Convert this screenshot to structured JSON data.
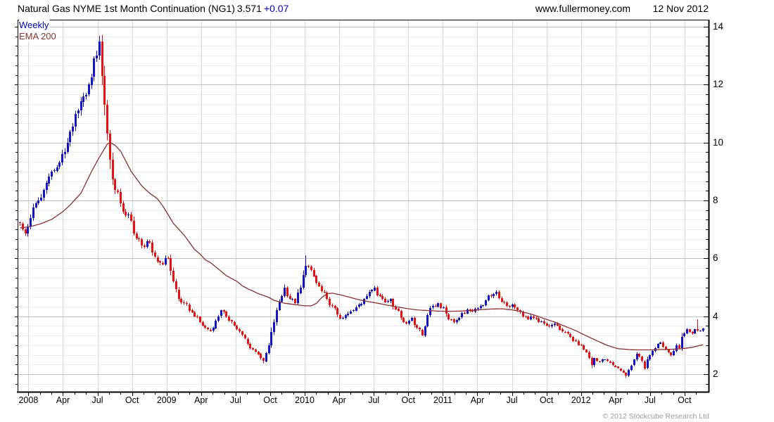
{
  "header": {
    "title": "Natural Gas NYME 1st Month Continuation (NG1)",
    "price": "3.571",
    "change": "+0.07",
    "website": "www.fullermoney.com",
    "date": "12 Nov 2012"
  },
  "legend": {
    "series": "Weekly",
    "overlay": "EMA 200"
  },
  "footer": {
    "copyright": "© 2012 Stockcube Research Ltd"
  },
  "colors": {
    "up_candle": "#1212cc",
    "down_candle": "#e81010",
    "ema_line": "#8b2f2f",
    "weekly_label": "#0000bb",
    "change_text": "#0000cc",
    "grid_major_h": "#c2c2c2",
    "grid_minor_h": "#ececec",
    "grid_vertical": "#d8d8d8",
    "axis": "#000000",
    "copyright_text": "#9a9a9a"
  },
  "chart_data": {
    "type": "candlestick",
    "instrument": "Natural Gas NYME 1st Month Continuation (NG1)",
    "interval": "Weekly",
    "overlay_name": "EMA 200",
    "last": {
      "close": 3.571,
      "change": "+0.07",
      "date": "12 Nov 2012"
    },
    "weeks_total": 259,
    "x_axis": {
      "months_total": 59,
      "start": "Dec 2007",
      "end": "Nov 2012",
      "labels": [
        [
          0,
          "2008"
        ],
        [
          3,
          "Apr"
        ],
        [
          6,
          "Jul"
        ],
        [
          9,
          "Oct"
        ],
        [
          12,
          "2009"
        ],
        [
          15,
          "Apr"
        ],
        [
          18,
          "Jul"
        ],
        [
          21,
          "Oct"
        ],
        [
          24,
          "2010"
        ],
        [
          27,
          "Apr"
        ],
        [
          30,
          "Jul"
        ],
        [
          33,
          "Oct"
        ],
        [
          36,
          "2011"
        ],
        [
          39,
          "Apr"
        ],
        [
          42,
          "Jul"
        ],
        [
          45,
          "Oct"
        ],
        [
          48,
          "2012"
        ],
        [
          51,
          "Apr"
        ],
        [
          54,
          "Jul"
        ],
        [
          57,
          "Oct"
        ]
      ]
    },
    "y_axis": {
      "ticks": [
        2,
        4,
        6,
        8,
        10,
        12,
        14
      ],
      "minor_step": 0.3333,
      "range_shown": [
        1.39,
        14.24
      ],
      "grid": true
    },
    "price_anchors": [
      [
        0,
        7.2
      ],
      [
        1,
        7.0
      ],
      [
        2,
        6.85
      ],
      [
        3,
        7.1
      ],
      [
        4,
        7.4
      ],
      [
        6,
        7.9
      ],
      [
        8,
        8.1
      ],
      [
        10,
        8.6
      ],
      [
        12,
        9.0
      ],
      [
        14,
        9.15
      ],
      [
        16,
        9.6
      ],
      [
        18,
        10.0
      ],
      [
        20,
        10.55
      ],
      [
        22,
        11.1
      ],
      [
        24,
        11.6
      ],
      [
        26,
        12.0
      ],
      [
        28,
        12.9
      ],
      [
        30,
        13.5
      ],
      [
        31,
        12.3
      ],
      [
        32,
        11.3
      ],
      [
        34,
        9.4
      ],
      [
        36,
        8.35
      ],
      [
        38,
        7.9
      ],
      [
        40,
        7.5
      ],
      [
        42,
        7.3
      ],
      [
        44,
        6.7
      ],
      [
        46,
        6.45
      ],
      [
        48,
        6.6
      ],
      [
        50,
        6.2
      ],
      [
        52,
        5.9
      ],
      [
        54,
        5.8
      ],
      [
        56,
        6.0
      ],
      [
        58,
        5.2
      ],
      [
        60,
        4.6
      ],
      [
        62,
        4.45
      ],
      [
        64,
        4.2
      ],
      [
        66,
        4.0
      ],
      [
        68,
        3.8
      ],
      [
        70,
        3.6
      ],
      [
        72,
        3.5
      ],
      [
        74,
        3.85
      ],
      [
        76,
        4.2
      ],
      [
        78,
        4.0
      ],
      [
        80,
        3.8
      ],
      [
        82,
        3.55
      ],
      [
        84,
        3.35
      ],
      [
        86,
        3.05
      ],
      [
        88,
        2.85
      ],
      [
        90,
        2.7
      ],
      [
        92,
        2.45
      ],
      [
        94,
        3.0
      ],
      [
        96,
        3.8
      ],
      [
        98,
        4.5
      ],
      [
        100,
        5.0
      ],
      [
        102,
        4.6
      ],
      [
        104,
        4.45
      ],
      [
        106,
        5.0
      ],
      [
        108,
        5.75
      ],
      [
        110,
        5.6
      ],
      [
        112,
        5.15
      ],
      [
        114,
        4.85
      ],
      [
        116,
        4.6
      ],
      [
        118,
        4.35
      ],
      [
        120,
        4.05
      ],
      [
        122,
        3.95
      ],
      [
        124,
        4.1
      ],
      [
        126,
        4.2
      ],
      [
        128,
        4.4
      ],
      [
        130,
        4.6
      ],
      [
        132,
        4.85
      ],
      [
        134,
        5.0
      ],
      [
        136,
        4.7
      ],
      [
        138,
        4.5
      ],
      [
        140,
        4.6
      ],
      [
        142,
        4.25
      ],
      [
        144,
        3.95
      ],
      [
        146,
        3.75
      ],
      [
        148,
        3.95
      ],
      [
        150,
        3.6
      ],
      [
        152,
        3.35
      ],
      [
        154,
        4.05
      ],
      [
        156,
        4.35
      ],
      [
        158,
        4.45
      ],
      [
        160,
        4.3
      ],
      [
        162,
        3.9
      ],
      [
        164,
        3.8
      ],
      [
        166,
        3.95
      ],
      [
        168,
        4.1
      ],
      [
        170,
        4.2
      ],
      [
        172,
        4.25
      ],
      [
        174,
        4.35
      ],
      [
        176,
        4.55
      ],
      [
        178,
        4.7
      ],
      [
        180,
        4.85
      ],
      [
        182,
        4.5
      ],
      [
        184,
        4.35
      ],
      [
        186,
        4.4
      ],
      [
        188,
        4.2
      ],
      [
        190,
        4.0
      ],
      [
        192,
        3.9
      ],
      [
        194,
        3.95
      ],
      [
        196,
        3.8
      ],
      [
        198,
        3.75
      ],
      [
        200,
        3.65
      ],
      [
        202,
        3.75
      ],
      [
        204,
        3.55
      ],
      [
        206,
        3.45
      ],
      [
        208,
        3.3
      ],
      [
        210,
        3.15
      ],
      [
        212,
        3.0
      ],
      [
        214,
        2.75
      ],
      [
        215,
        2.55
      ],
      [
        216,
        2.3
      ],
      [
        217,
        2.55
      ],
      [
        218,
        2.45
      ],
      [
        220,
        2.5
      ],
      [
        222,
        2.45
      ],
      [
        224,
        2.3
      ],
      [
        226,
        2.2
      ],
      [
        228,
        2.05
      ],
      [
        229,
        1.95
      ],
      [
        230,
        2.15
      ],
      [
        231,
        2.3
      ],
      [
        232,
        2.5
      ],
      [
        233,
        2.7
      ],
      [
        234,
        2.6
      ],
      [
        235,
        2.45
      ],
      [
        236,
        2.2
      ],
      [
        237,
        2.5
      ],
      [
        238,
        2.65
      ],
      [
        239,
        2.8
      ],
      [
        240,
        2.9
      ],
      [
        241,
        3.05
      ],
      [
        242,
        3.1
      ],
      [
        243,
        2.95
      ],
      [
        244,
        2.85
      ],
      [
        245,
        2.75
      ],
      [
        246,
        2.65
      ],
      [
        247,
        2.8
      ],
      [
        248,
        3.0
      ],
      [
        249,
        2.9
      ],
      [
        250,
        3.3
      ],
      [
        251,
        3.4
      ],
      [
        252,
        3.55
      ],
      [
        253,
        3.45
      ],
      [
        254,
        3.4
      ],
      [
        255,
        3.55
      ],
      [
        256,
        3.5
      ],
      [
        257,
        3.5
      ],
      [
        258,
        3.571
      ]
    ],
    "notable_wicks": [
      {
        "week": 30,
        "side": "high",
        "value": 13.69
      },
      {
        "week": 92,
        "side": "low",
        "value": 2.38
      },
      {
        "week": 108,
        "side": "high",
        "value": 6.1
      },
      {
        "week": 229,
        "side": "low",
        "value": 1.88
      },
      {
        "week": 256,
        "side": "high",
        "value": 3.9
      }
    ],
    "ema_anchors": [
      [
        0,
        7.05
      ],
      [
        4,
        7.1
      ],
      [
        8,
        7.2
      ],
      [
        12,
        7.35
      ],
      [
        16,
        7.6
      ],
      [
        19,
        7.85
      ],
      [
        23,
        8.25
      ],
      [
        27,
        9.0
      ],
      [
        30,
        9.5
      ],
      [
        33,
        9.95
      ],
      [
        34,
        10.0
      ],
      [
        36,
        9.9
      ],
      [
        38,
        9.7
      ],
      [
        40,
        9.35
      ],
      [
        42,
        9.0
      ],
      [
        44,
        8.75
      ],
      [
        46,
        8.5
      ],
      [
        49,
        8.25
      ],
      [
        52,
        8.05
      ],
      [
        54,
        7.8
      ],
      [
        56,
        7.5
      ],
      [
        58,
        7.2
      ],
      [
        60,
        7.0
      ],
      [
        62,
        6.8
      ],
      [
        64,
        6.55
      ],
      [
        66,
        6.3
      ],
      [
        68,
        6.15
      ],
      [
        70,
        5.95
      ],
      [
        72,
        5.85
      ],
      [
        74,
        5.7
      ],
      [
        76,
        5.55
      ],
      [
        78,
        5.4
      ],
      [
        80,
        5.3
      ],
      [
        82,
        5.2
      ],
      [
        84,
        5.05
      ],
      [
        86,
        4.95
      ],
      [
        88,
        4.87
      ],
      [
        90,
        4.78
      ],
      [
        92,
        4.72
      ],
      [
        94,
        4.65
      ],
      [
        96,
        4.55
      ],
      [
        98,
        4.5
      ],
      [
        100,
        4.45
      ],
      [
        104,
        4.4
      ],
      [
        108,
        4.36
      ],
      [
        110,
        4.36
      ],
      [
        112,
        4.45
      ],
      [
        114,
        4.65
      ],
      [
        116,
        4.78
      ],
      [
        118,
        4.8
      ],
      [
        120,
        4.76
      ],
      [
        122,
        4.72
      ],
      [
        126,
        4.62
      ],
      [
        130,
        4.53
      ],
      [
        134,
        4.47
      ],
      [
        138,
        4.4
      ],
      [
        142,
        4.33
      ],
      [
        146,
        4.27
      ],
      [
        150,
        4.22
      ],
      [
        154,
        4.2
      ],
      [
        158,
        4.18
      ],
      [
        162,
        4.17
      ],
      [
        166,
        4.18
      ],
      [
        170,
        4.2
      ],
      [
        174,
        4.23
      ],
      [
        178,
        4.25
      ],
      [
        182,
        4.26
      ],
      [
        186,
        4.22
      ],
      [
        190,
        4.15
      ],
      [
        194,
        4.05
      ],
      [
        198,
        3.92
      ],
      [
        202,
        3.8
      ],
      [
        206,
        3.65
      ],
      [
        210,
        3.5
      ],
      [
        214,
        3.32
      ],
      [
        218,
        3.15
      ],
      [
        222,
        2.99
      ],
      [
        226,
        2.88
      ],
      [
        230,
        2.85
      ],
      [
        234,
        2.84
      ],
      [
        238,
        2.84
      ],
      [
        242,
        2.85
      ],
      [
        246,
        2.86
      ],
      [
        250,
        2.88
      ],
      [
        254,
        2.93
      ],
      [
        258,
        3.02
      ]
    ]
  }
}
